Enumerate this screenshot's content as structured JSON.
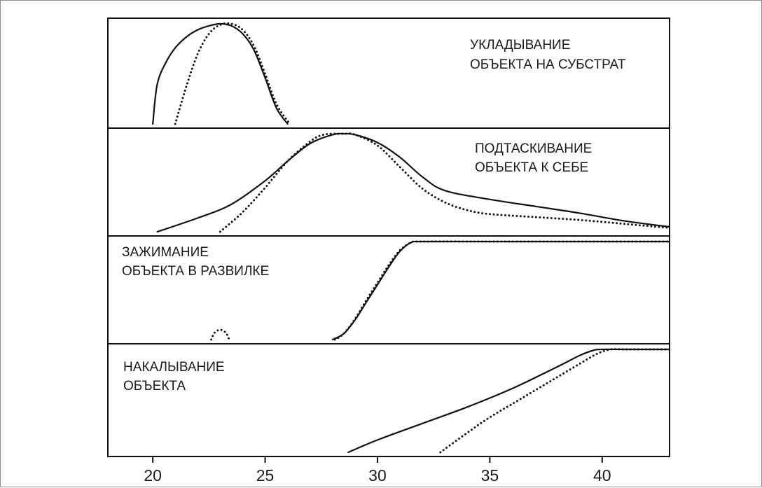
{
  "chart_data": {
    "type": "line",
    "title": "",
    "xlabel": "",
    "ylabel": "",
    "xlim": [
      18,
      43
    ],
    "x_ticks": [
      20,
      25,
      30,
      35,
      40
    ],
    "x_tick_labels": [
      "20",
      "25",
      "30",
      "35",
      "40"
    ],
    "ylim": [
      0,
      1
    ],
    "grid": false,
    "legend": "none",
    "colors": {
      "line": "#111111",
      "axis": "#111111"
    },
    "panels": [
      {
        "id": "panel-ukladyvanie",
        "label_lines": [
          "УКЛАДЫВАНИЕ",
          "ОБЪЕКТА  НА СУБСТРАТ"
        ],
        "series": [
          {
            "style": "solid",
            "x": [
              20.0,
              20.2,
              20.6,
              21.0,
              21.5,
              22.0,
              22.5,
              23.0,
              23.5,
              24.0,
              24.5,
              25.0,
              25.5,
              26.0
            ],
            "y": [
              0.0,
              0.4,
              0.62,
              0.76,
              0.87,
              0.94,
              0.98,
              1.0,
              0.98,
              0.9,
              0.74,
              0.46,
              0.16,
              0.0
            ]
          },
          {
            "style": "dotted",
            "x": [
              21.0,
              21.5,
              22.0,
              22.5,
              23.0,
              23.5,
              24.0,
              24.5,
              25.0,
              25.5,
              26.1
            ],
            "y": [
              0.0,
              0.38,
              0.7,
              0.9,
              0.99,
              1.0,
              0.94,
              0.78,
              0.5,
              0.2,
              0.0
            ]
          }
        ]
      },
      {
        "id": "panel-podtaskivanie",
        "label_lines": [
          "ПОДТАСКИВАНИЕ",
          "ОБЪЕКТА К СЕБЕ"
        ],
        "series": [
          {
            "style": "solid",
            "x": [
              20.2,
              22.0,
              23.5,
              25.0,
              26.0,
              27.0,
              28.0,
              28.5,
              29.0,
              30.0,
              31.0,
              32.0,
              33.0,
              35.0,
              37.0,
              39.0,
              41.0,
              43.0
            ],
            "y": [
              0.0,
              0.14,
              0.28,
              0.52,
              0.72,
              0.9,
              0.99,
              1.0,
              0.99,
              0.91,
              0.76,
              0.56,
              0.42,
              0.33,
              0.26,
              0.19,
              0.11,
              0.05
            ]
          },
          {
            "style": "dotted",
            "x": [
              23.0,
              24.0,
              25.0,
              26.0,
              27.0,
              27.6,
              28.5,
              29.0,
              30.0,
              31.0,
              32.0,
              33.0,
              34.0,
              35.0,
              37.0,
              39.0,
              41.0,
              43.0
            ],
            "y": [
              0.0,
              0.2,
              0.45,
              0.72,
              0.92,
              0.99,
              1.0,
              0.99,
              0.88,
              0.66,
              0.44,
              0.3,
              0.22,
              0.18,
              0.15,
              0.12,
              0.08,
              0.04
            ]
          }
        ]
      },
      {
        "id": "panel-zazhimanie",
        "label_lines": [
          "ЗАЖИМАНИЕ",
          "ОБЪЕКТА В РАЗВИЛКЕ"
        ],
        "series": [
          {
            "style": "solid",
            "x": [
              28.0,
              28.5,
              29.0,
              29.5,
              30.0,
              30.5,
              31.0,
              31.5,
              32.0,
              35.0,
              38.0,
              43.0
            ],
            "y": [
              0.0,
              0.06,
              0.2,
              0.38,
              0.56,
              0.74,
              0.9,
              0.99,
              1.0,
              1.0,
              1.0,
              1.0
            ]
          },
          {
            "style": "dotted",
            "x": [
              28.1,
              28.5,
              29.0,
              29.5,
              30.0,
              30.5,
              31.0,
              31.5,
              32.0,
              35.0,
              38.0,
              43.0
            ],
            "y": [
              0.0,
              0.06,
              0.21,
              0.4,
              0.58,
              0.76,
              0.91,
              0.99,
              1.0,
              1.0,
              1.0,
              1.0
            ]
          },
          {
            "style": "dotted",
            "x": [
              22.6,
              22.75,
              23.0,
              23.25,
              23.4
            ],
            "y": [
              0.0,
              0.07,
              0.1,
              0.07,
              0.0
            ]
          }
        ]
      },
      {
        "id": "panel-nakalyvanie",
        "label_lines": [
          "НАКАЛЫВАНИЕ",
          "ОБЪЕКТА"
        ],
        "series": [
          {
            "style": "solid",
            "x": [
              28.7,
              30.0,
              32.0,
              34.0,
              36.0,
              38.0,
              39.0,
              39.6,
              40.0,
              41.0,
              43.0
            ],
            "y": [
              0.0,
              0.12,
              0.28,
              0.44,
              0.62,
              0.83,
              0.94,
              0.99,
              1.0,
              1.0,
              1.0
            ]
          },
          {
            "style": "dotted",
            "x": [
              32.8,
              34.0,
              35.0,
              36.0,
              37.0,
              38.0,
              39.0,
              39.8,
              40.4,
              41.0,
              43.0
            ],
            "y": [
              0.0,
              0.19,
              0.34,
              0.47,
              0.6,
              0.73,
              0.86,
              0.96,
              1.0,
              1.0,
              1.0
            ]
          }
        ]
      }
    ]
  }
}
